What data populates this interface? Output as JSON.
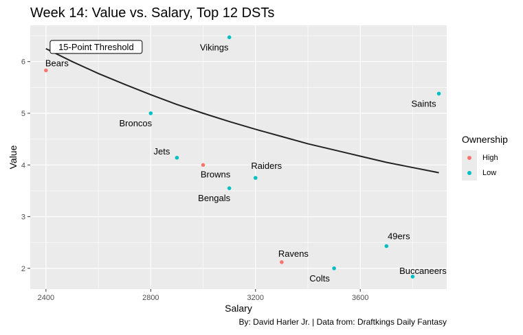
{
  "chart_data": {
    "type": "scatter",
    "title": "Week 14: Value vs. Salary, Top 12 DSTs",
    "xlabel": "Salary",
    "ylabel": "Value",
    "caption": "By: David Harler Jr. | Data from: Draftkings Daily Fantasy",
    "xlim": [
      2340,
      3930
    ],
    "ylim": [
      1.6,
      6.7
    ],
    "x_ticks": [
      2400,
      2800,
      3200,
      3600
    ],
    "y_ticks": [
      2,
      3,
      4,
      5,
      6
    ],
    "grid": true,
    "legend": {
      "title": "Ownership",
      "placement": "right",
      "entries": [
        {
          "label": "High",
          "color": "#F8766D"
        },
        {
          "label": "Low",
          "color": "#00BFC4"
        }
      ]
    },
    "points": [
      {
        "team": "Bears",
        "salary": 2400,
        "value": 5.83,
        "ownership": "High"
      },
      {
        "team": "Vikings",
        "salary": 3100,
        "value": 6.47,
        "ownership": "Low"
      },
      {
        "team": "Saints",
        "salary": 3900,
        "value": 5.38,
        "ownership": "Low"
      },
      {
        "team": "Broncos",
        "salary": 2800,
        "value": 5.0,
        "ownership": "Low"
      },
      {
        "team": "Jets",
        "salary": 2900,
        "value": 4.14,
        "ownership": "Low"
      },
      {
        "team": "Browns",
        "salary": 3000,
        "value": 4.0,
        "ownership": "High"
      },
      {
        "team": "Raiders",
        "salary": 3200,
        "value": 3.75,
        "ownership": "Low"
      },
      {
        "team": "Bengals",
        "salary": 3100,
        "value": 3.55,
        "ownership": "Low"
      },
      {
        "team": "49ers",
        "salary": 3700,
        "value": 2.43,
        "ownership": "Low"
      },
      {
        "team": "Ravens",
        "salary": 3300,
        "value": 2.12,
        "ownership": "High"
      },
      {
        "team": "Colts",
        "salary": 3500,
        "value": 2.0,
        "ownership": "Low"
      },
      {
        "team": "Buccaneers",
        "salary": 3800,
        "value": 1.84,
        "ownership": "Low"
      }
    ],
    "threshold_line": {
      "label": "15-Point Threshold",
      "x": [
        2400,
        2500,
        2600,
        2700,
        2800,
        2900,
        3000,
        3100,
        3200,
        3300,
        3400,
        3500,
        3600,
        3700,
        3800,
        3900
      ],
      "y": [
        6.25,
        6.0,
        5.77,
        5.56,
        5.36,
        5.17,
        5.0,
        4.84,
        4.69,
        4.55,
        4.41,
        4.29,
        4.17,
        4.05,
        3.95,
        3.85
      ]
    }
  }
}
